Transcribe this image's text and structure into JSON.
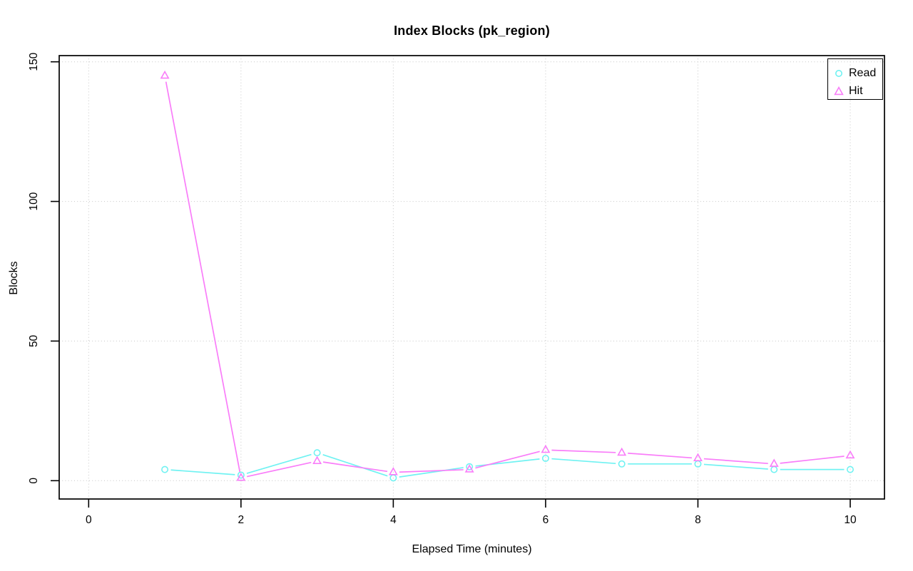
{
  "chart_data": {
    "type": "line",
    "title": "Index Blocks (pk_region)",
    "xlabel": "Elapsed Time (minutes)",
    "ylabel": "Blocks",
    "x": [
      1,
      2,
      3,
      4,
      5,
      6,
      7,
      8,
      9,
      10
    ],
    "series": [
      {
        "name": "Read",
        "marker": "circle",
        "color": "#70f2f2",
        "values": [
          4,
          2,
          10,
          1,
          5,
          8,
          6,
          6,
          4,
          4
        ]
      },
      {
        "name": "Hit",
        "marker": "triangle",
        "color": "#f97df9",
        "values": [
          145,
          1,
          7,
          3,
          4,
          11,
          10,
          8,
          6,
          9
        ]
      }
    ],
    "xticks": [
      0,
      2,
      4,
      6,
      8,
      10
    ],
    "yticks": [
      0,
      50,
      100,
      150
    ],
    "xlim": [
      -0.35,
      10.45
    ],
    "ylim": [
      -6,
      152
    ],
    "grid": true,
    "grid_color": "#c6c6c6",
    "axis_color": "#000000",
    "legend": {
      "position": "top-right",
      "entries": [
        "Read",
        "Hit"
      ]
    }
  }
}
